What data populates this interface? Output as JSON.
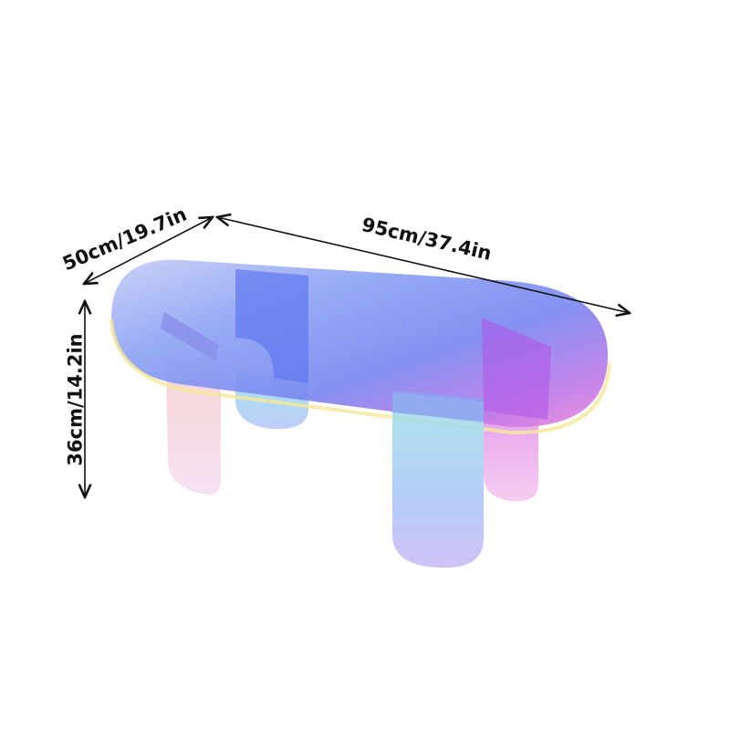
{
  "product": {
    "dimensions": {
      "length": "95cm/37.4in",
      "width": "50cm/19.7in",
      "height": "36cm/14.2in"
    },
    "colors": {
      "iridescent_blue": "#6f8cf2",
      "iridescent_pink": "#e07ae0",
      "iridescent_cyan": "#7fd8f0",
      "iridescent_violet": "#9a6cf0"
    }
  }
}
